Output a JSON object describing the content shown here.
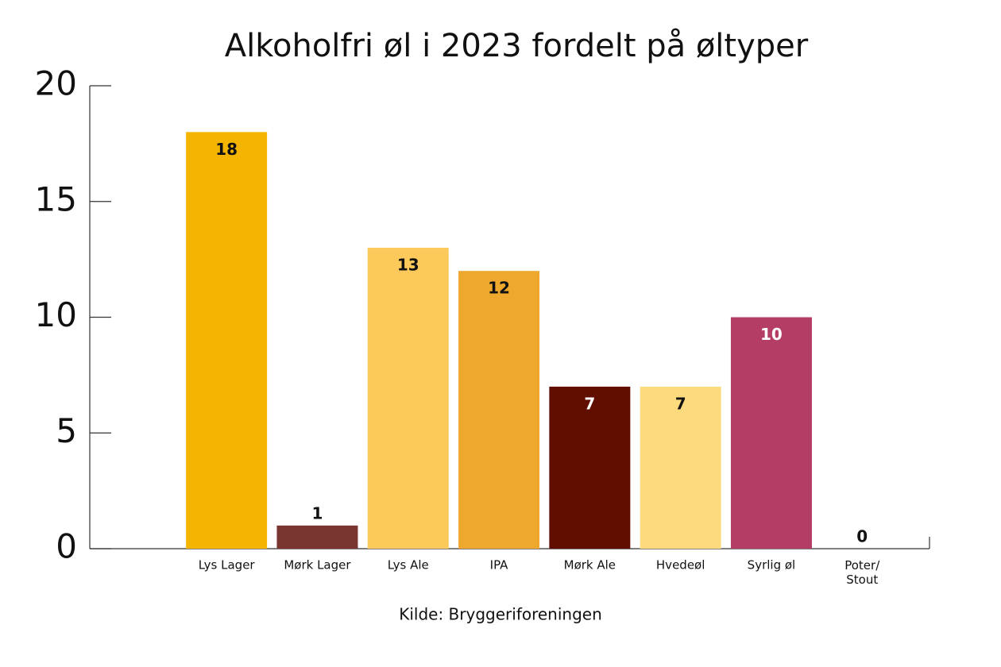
{
  "chart_data": {
    "type": "bar",
    "title": "Alkoholfri øl i 2023 fordelt på øltyper",
    "source": "Kilde: Bryggeriforeningen",
    "categories": [
      "Lys Lager",
      "Mørk Lager",
      "Lys Ale",
      "IPA",
      "Mørk Ale",
      "Hvedeøl",
      "Syrlig øl",
      "Poter/\nStout"
    ],
    "values": [
      18,
      1,
      13,
      12,
      7,
      7,
      10,
      0
    ],
    "colors": [
      "#f5b400",
      "#7a3530",
      "#fdc95a",
      "#eea82e",
      "#600e00",
      "#feda7e",
      "#b33d64",
      "#000000"
    ],
    "ylim": [
      0,
      20
    ],
    "yticks": [
      0,
      5,
      10,
      15,
      20
    ],
    "grid": false
  }
}
